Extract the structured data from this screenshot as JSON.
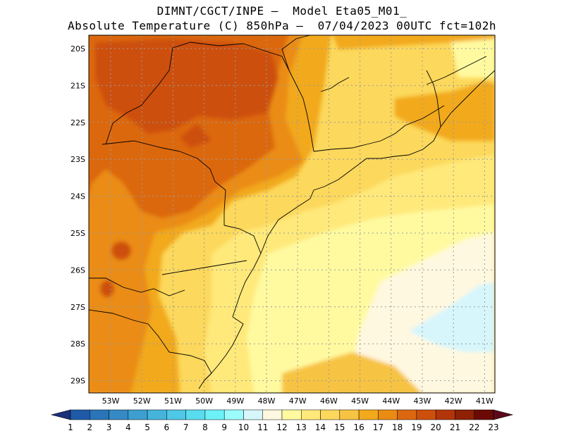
{
  "title": {
    "line1": "DIMNT/CGCT/INPE –  Model Eta05_M01_",
    "line2": "Absolute Temperature (C) 850hPa –  07/04/2023 00UTC fct=102h"
  },
  "map": {
    "lat_labels": [
      "20S",
      "21S",
      "22S",
      "23S",
      "24S",
      "25S",
      "26S",
      "27S",
      "28S",
      "29S"
    ],
    "lon_labels": [
      "53W",
      "52W",
      "51W",
      "50W",
      "49W",
      "48W",
      "47W",
      "46W",
      "45W",
      "44W",
      "43W",
      "42W",
      "41W"
    ],
    "grid_style": "dotted"
  },
  "colorbar": {
    "labels": [
      "1",
      "2",
      "3",
      "4",
      "5",
      "6",
      "7",
      "8",
      "9",
      "10",
      "11",
      "12",
      "13",
      "14",
      "15",
      "16",
      "17",
      "18",
      "19",
      "20",
      "21",
      "22",
      "23"
    ],
    "colors": [
      "#1a3c8c",
      "#1f5aa8",
      "#2a74b8",
      "#3589c4",
      "#3c9fcf",
      "#44b4db",
      "#4ec8e6",
      "#5adcef",
      "#6ef0f7",
      "#9cfcfd",
      "#d6f6fc",
      "#fff8e0",
      "#fffaa0",
      "#ffe97a",
      "#fcd85c",
      "#f7c342",
      "#f2a91c",
      "#ea8c12",
      "#dc6710",
      "#cd4f0c",
      "#b2350a",
      "#8e2106",
      "#6b0a04"
    ],
    "end_colors": {
      "low": "#1b2f7a",
      "high": "#5a0a1a"
    }
  }
}
